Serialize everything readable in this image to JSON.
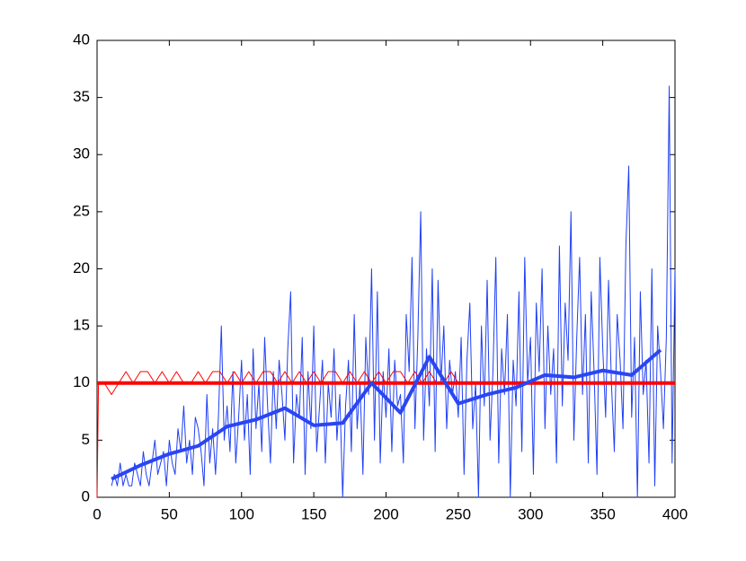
{
  "chart_data": {
    "type": "line",
    "xlim": [
      0,
      400
    ],
    "xticks": [
      0,
      50,
      100,
      150,
      200,
      250,
      300,
      350,
      400
    ],
    "ylim": [
      0,
      40
    ],
    "yticks": [
      0,
      5,
      10,
      15,
      20,
      25,
      30,
      35,
      40
    ],
    "grid": false,
    "series": [
      {
        "color": "#1f3ff5",
        "width": 1,
        "x": [
          10,
          12,
          14,
          16,
          18,
          20,
          22,
          24,
          26,
          28,
          30,
          32,
          34,
          36,
          38,
          40,
          42,
          44,
          46,
          48,
          50,
          52,
          54,
          56,
          58,
          60,
          62,
          64,
          66,
          68,
          70,
          72,
          74,
          76,
          78,
          80,
          82,
          84,
          86,
          88,
          90,
          92,
          94,
          96,
          98,
          100,
          102,
          104,
          106,
          108,
          110,
          112,
          114,
          116,
          118,
          120,
          122,
          124,
          126,
          128,
          130,
          132,
          134,
          136,
          138,
          140,
          142,
          144,
          146,
          148,
          150,
          152,
          154,
          156,
          158,
          160,
          162,
          164,
          166,
          168,
          170,
          172,
          174,
          176,
          178,
          180,
          182,
          184,
          186,
          188,
          190,
          192,
          194,
          196,
          198,
          200,
          202,
          204,
          206,
          208,
          210,
          212,
          214,
          216,
          218,
          220,
          222,
          224,
          226,
          228,
          230,
          232,
          234,
          236,
          238,
          240,
          242,
          244,
          246,
          248,
          250,
          252,
          254,
          256,
          258,
          260,
          262,
          264,
          266,
          268,
          270,
          272,
          274,
          276,
          278,
          280,
          282,
          284,
          286,
          288,
          290,
          292,
          294,
          296,
          298,
          300,
          302,
          304,
          306,
          308,
          310,
          312,
          314,
          316,
          318,
          320,
          322,
          324,
          326,
          328,
          330,
          332,
          334,
          336,
          338,
          340,
          342,
          344,
          346,
          348,
          350,
          352,
          354,
          356,
          358,
          360,
          362,
          364,
          366,
          368,
          370,
          372,
          374,
          376,
          378,
          380,
          382,
          384,
          386,
          388,
          390,
          392,
          394,
          396,
          398,
          400
        ],
        "values": [
          1,
          2,
          1,
          3,
          1,
          2,
          1,
          1,
          3,
          2,
          1,
          4,
          2,
          1,
          3,
          5,
          2,
          3,
          4,
          1,
          5,
          3,
          2,
          6,
          4,
          8,
          3,
          5,
          2,
          7,
          6,
          4,
          1,
          9,
          3,
          6,
          2,
          7,
          15,
          5,
          8,
          4,
          11,
          3,
          7,
          12,
          5,
          9,
          2,
          13,
          6,
          10,
          4,
          14,
          8,
          3,
          11,
          6,
          12,
          9,
          5,
          13,
          18,
          3,
          9,
          7,
          14,
          2,
          11,
          6,
          15,
          4,
          8,
          12,
          3,
          10,
          7,
          13,
          5,
          9,
          0,
          8,
          12,
          4,
          16,
          6,
          10,
          2,
          14,
          9,
          20,
          5,
          18,
          3,
          11,
          7,
          13,
          4,
          12,
          8,
          9,
          3,
          16,
          11,
          21,
          6,
          14,
          25,
          5,
          13,
          8,
          20,
          4,
          19,
          10,
          15,
          6,
          12,
          9,
          11,
          7,
          14,
          2,
          12,
          17,
          6,
          10,
          0,
          15,
          8,
          19,
          5,
          11,
          21,
          3,
          13,
          9,
          16,
          0,
          12,
          8,
          18,
          4,
          21,
          10,
          14,
          2,
          17,
          11,
          20,
          6,
          15,
          9,
          13,
          3,
          22,
          8,
          17,
          12,
          25,
          5,
          14,
          21,
          9,
          16,
          3,
          18,
          11,
          2,
          21,
          13,
          7,
          19,
          10,
          4,
          16,
          12,
          6,
          22,
          29,
          7,
          14,
          0,
          18,
          9,
          12,
          3,
          20,
          1,
          15,
          11,
          6,
          14,
          36,
          3,
          20
        ]
      },
      {
        "color": "#ff0000",
        "width": 1,
        "x": [
          0,
          1,
          5,
          10,
          15,
          20,
          25,
          30,
          35,
          40,
          45,
          50,
          55,
          60,
          65,
          70,
          75,
          80,
          85,
          90,
          95,
          100,
          105,
          110,
          115,
          120,
          125,
          130,
          135,
          140,
          145,
          150,
          155,
          160,
          165,
          170,
          175,
          180,
          185,
          190,
          195,
          200,
          205,
          210,
          215,
          220,
          225,
          230,
          235,
          240,
          245,
          250
        ],
        "values": [
          0,
          10,
          10,
          9,
          10,
          11,
          10,
          11,
          11,
          10,
          11,
          10,
          11,
          10,
          10,
          11,
          10,
          11,
          11,
          10,
          11,
          10,
          11,
          10,
          11,
          11,
          10,
          11,
          10,
          11,
          10,
          11,
          10,
          11,
          11,
          10,
          11,
          10,
          11,
          10,
          11,
          10,
          11,
          11,
          10,
          11,
          10,
          11,
          10,
          10,
          11,
          10
        ]
      },
      {
        "color": "#ff0000",
        "width": 4,
        "x": [
          0,
          400
        ],
        "values": [
          10,
          10
        ]
      },
      {
        "color": "#2a46f2",
        "width": 4,
        "x": [
          10,
          30,
          50,
          70,
          90,
          110,
          130,
          150,
          170,
          190,
          210,
          230,
          250,
          270,
          290,
          310,
          330,
          350,
          370,
          390
        ],
        "values": [
          1.6,
          2.8,
          3.8,
          4.5,
          6.2,
          6.8,
          7.8,
          6.3,
          6.5,
          10,
          7.4,
          12.3,
          8.2,
          9,
          9.6,
          10.7,
          10.5,
          11.1,
          10.7,
          12.9
        ]
      }
    ]
  }
}
